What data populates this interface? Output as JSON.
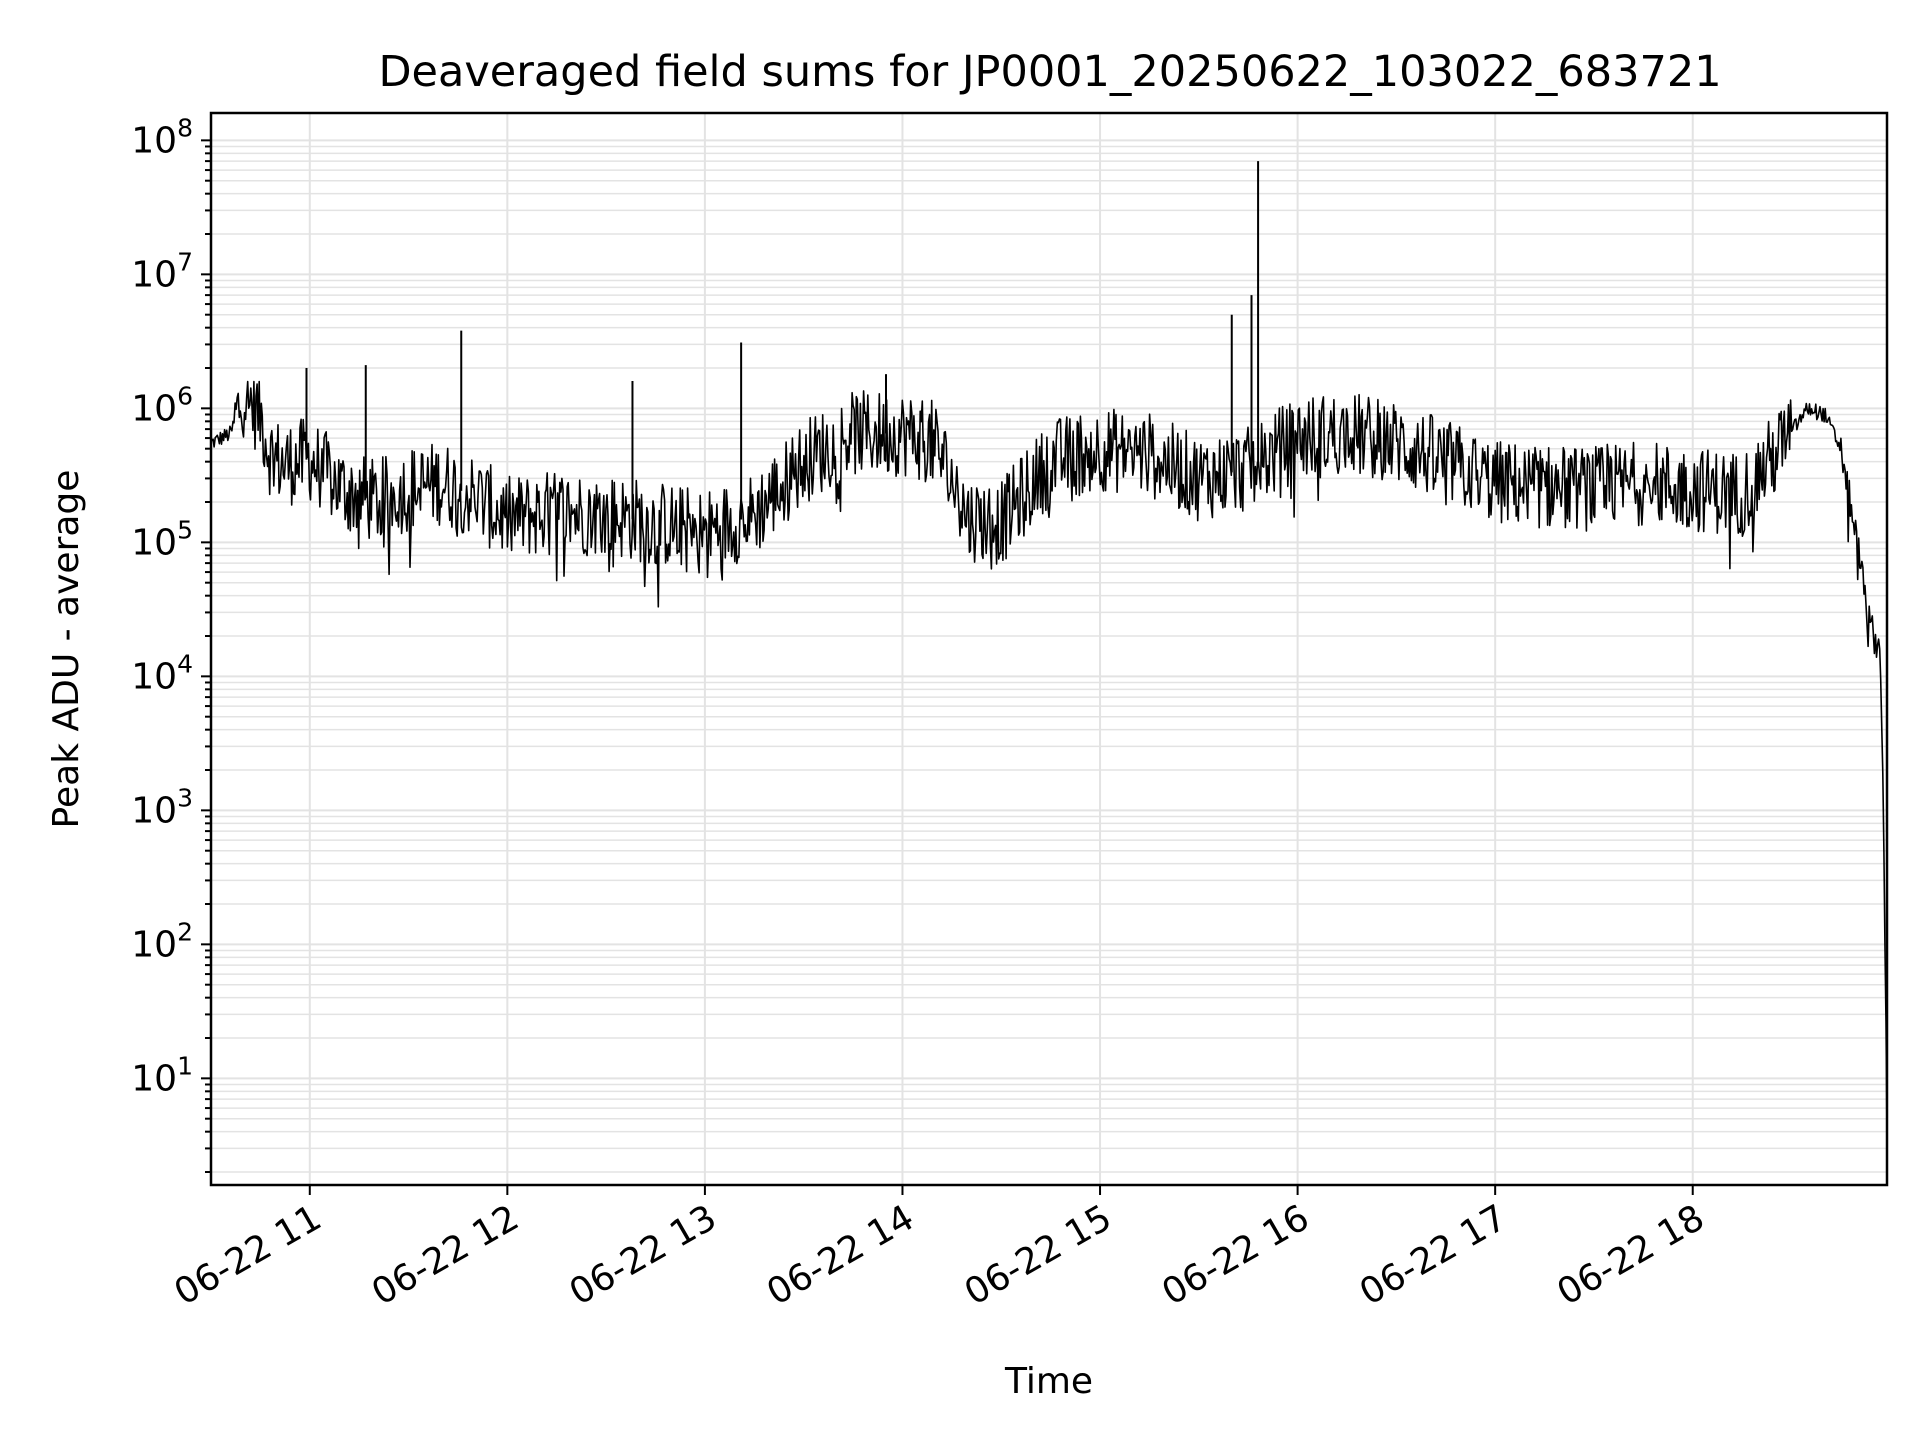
{
  "chart_data": {
    "type": "line",
    "title": "Deaveraged field sums for JP0001_20250622_103022_683721",
    "xlabel": "Time",
    "ylabel": "Peak ADU - average",
    "yscale": "log",
    "ylim": [
      1.6,
      160000000
    ],
    "xlim": [
      "06-22 10:30",
      "06-22 18:59"
    ],
    "grid": true,
    "x_ticks": [
      "06-22 11",
      "06-22 12",
      "06-22 13",
      "06-22 14",
      "06-22 15",
      "06-22 16",
      "06-22 17",
      "06-22 18"
    ],
    "y_ticks": [
      {
        "base": "10",
        "exp": "1",
        "value": 10
      },
      {
        "base": "10",
        "exp": "2",
        "value": 100
      },
      {
        "base": "10",
        "exp": "3",
        "value": 1000
      },
      {
        "base": "10",
        "exp": "4",
        "value": 10000
      },
      {
        "base": "10",
        "exp": "5",
        "value": 100000
      },
      {
        "base": "10",
        "exp": "6",
        "value": 1000000
      },
      {
        "base": "10",
        "exp": "7",
        "value": 10000000
      },
      {
        "base": "10",
        "exp": "8",
        "value": 100000000
      }
    ],
    "line_color": "#000000",
    "grid_color": "#e3e3e3",
    "series": [
      {
        "x": [
          "06-22 10:30",
          "06-22 10:36",
          "06-22 10:40",
          "06-22 10:45",
          "06-22 10:48",
          "06-22 10:52",
          "06-22 11:00",
          "06-22 11:10",
          "06-22 11:20",
          "06-22 11:30",
          "06-22 11:40",
          "06-22 11:50",
          "06-22 12:00",
          "06-22 12:15",
          "06-22 12:30",
          "06-22 12:45",
          "06-22 13:00",
          "06-22 13:15",
          "06-22 13:30",
          "06-22 13:45",
          "06-22 14:00",
          "06-22 14:10",
          "06-22 14:20",
          "06-22 14:30",
          "06-22 14:45",
          "06-22 15:00",
          "06-22 15:15",
          "06-22 15:30",
          "06-22 15:45",
          "06-22 16:00",
          "06-22 16:15",
          "06-22 16:30",
          "06-22 16:45",
          "06-22 17:00",
          "06-22 17:15",
          "06-22 17:30",
          "06-22 17:45",
          "06-22 18:00",
          "06-22 18:15",
          "06-22 18:25",
          "06-22 18:35",
          "06-22 18:40",
          "06-22 18:45",
          "06-22 18:50",
          "06-22 18:53",
          "06-22 18:55",
          "06-22 18:57",
          "06-22 18:58",
          "06-22 18:59"
        ],
        "y": [
          550000,
          650000,
          1300000,
          900000,
          450000,
          380000,
          420000,
          250000,
          200000,
          250000,
          280000,
          220000,
          150000,
          170000,
          160000,
          140000,
          120000,
          160000,
          400000,
          650000,
          650000,
          550000,
          150000,
          140000,
          400000,
          500000,
          450000,
          300000,
          350000,
          600000,
          650000,
          550000,
          400000,
          280000,
          260000,
          250000,
          280000,
          250000,
          230000,
          450000,
          1000000,
          900000,
          500000,
          100000,
          30000,
          20000,
          15000,
          800,
          4
        ],
        "spikes": [
          {
            "x": "06-22 10:59",
            "y": 2000000
          },
          {
            "x": "06-22 11:17",
            "y": 2100000
          },
          {
            "x": "06-22 11:46",
            "y": 3800000
          },
          {
            "x": "06-22 12:38",
            "y": 1600000
          },
          {
            "x": "06-22 13:11",
            "y": 3100000
          },
          {
            "x": "06-22 13:55",
            "y": 1800000
          },
          {
            "x": "06-22 15:40",
            "y": 5000000
          },
          {
            "x": "06-22 15:46",
            "y": 7000000
          },
          {
            "x": "06-22 15:48",
            "y": 70000000
          }
        ]
      }
    ]
  }
}
